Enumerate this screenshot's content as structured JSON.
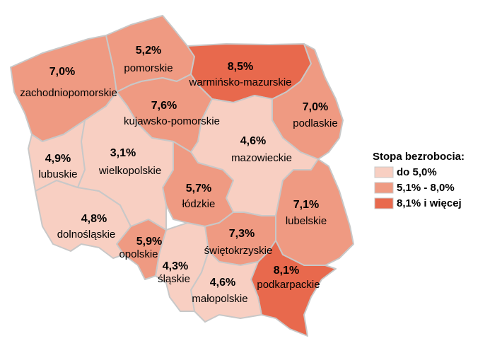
{
  "regions": [
    {
      "name": "zachodniopomorskie",
      "value": "7,0%",
      "color": "#ef9a82"
    },
    {
      "name": "pomorskie",
      "value": "5,2%",
      "color": "#ef9a82"
    },
    {
      "name": "warmińsko-mazurskie",
      "value": "8,5%",
      "color": "#e8694d"
    },
    {
      "name": "podlaskie",
      "value": "7,0%",
      "color": "#ef9a82"
    },
    {
      "name": "kujawsko-pomorskie",
      "value": "7,6%",
      "color": "#ef9a82"
    },
    {
      "name": "mazowieckie",
      "value": "4,6%",
      "color": "#f8cfc2"
    },
    {
      "name": "lubelskie",
      "value": "7,1%",
      "color": "#ef9a82"
    },
    {
      "name": "podkarpackie",
      "value": "8,1%",
      "color": "#e8694d"
    },
    {
      "name": "łódzkie",
      "value": "5,7%",
      "color": "#ef9a82"
    },
    {
      "name": "świętokrzyskie",
      "value": "7,3%",
      "color": "#ef9a82"
    },
    {
      "name": "małopolskie",
      "value": "4,6%",
      "color": "#f8cfc2"
    },
    {
      "name": "śląskie",
      "value": "4,3%",
      "color": "#f8cfc2"
    },
    {
      "name": "opolskie",
      "value": "5,9%",
      "color": "#ef9a82"
    },
    {
      "name": "dolnośląskie",
      "value": "4,8%",
      "color": "#f8cfc2"
    },
    {
      "name": "lubuskie",
      "value": "4,9%",
      "color": "#f8cfc2"
    },
    {
      "name": "wielkopolskie",
      "value": "3,1%",
      "color": "#f8cfc2"
    }
  ],
  "legend": {
    "title": "Stopa bezrobocia:",
    "items": [
      {
        "label": "do 5,0%",
        "color": "#f8cfc2"
      },
      {
        "label": "5,1% - 8,0%",
        "color": "#ef9a82"
      },
      {
        "label": "8,1% i więcej",
        "color": "#e8694d"
      }
    ]
  }
}
